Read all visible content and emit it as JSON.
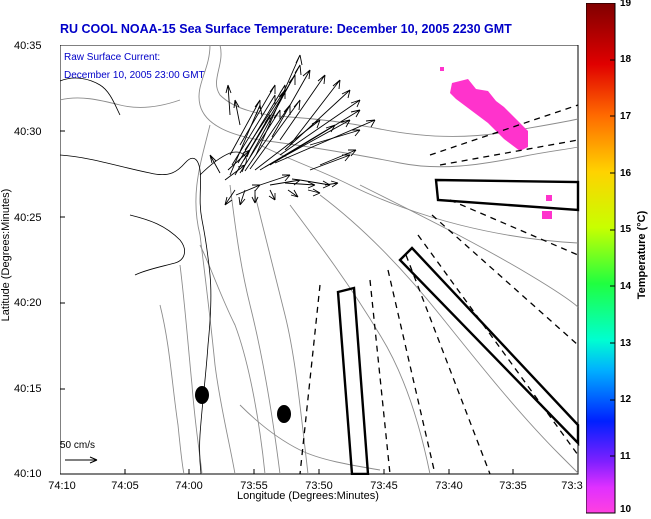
{
  "title": "RU COOL  NOAA-15  Sea Surface Temperature:  December 10, 2005 2230 GMT",
  "legend": {
    "line1": "Raw Surface Current:",
    "line2": "December 10, 2005 23:00 GMT"
  },
  "scale": {
    "label": "50 cm/s"
  },
  "axes": {
    "xlabel": "Longitude (Degrees:Minutes)",
    "ylabel": "Latitude (Degrees:Minutes)",
    "xticks": [
      "74:10",
      "74:05",
      "74:00",
      "73:55",
      "73:50",
      "73:45",
      "73:40",
      "73:35",
      "73:3"
    ],
    "yticks": [
      "40:35",
      "40:30",
      "40:25",
      "40:20",
      "40:15",
      "40:10"
    ]
  },
  "colorbar": {
    "title": "Temperature (°C)",
    "ticks": [
      "19",
      "18",
      "17",
      "16",
      "15",
      "14",
      "13",
      "12",
      "11",
      "10"
    ],
    "min": 10,
    "max": 19
  },
  "colors": {
    "title": "#0000c8",
    "sst_patch": "#ff33cc"
  }
}
